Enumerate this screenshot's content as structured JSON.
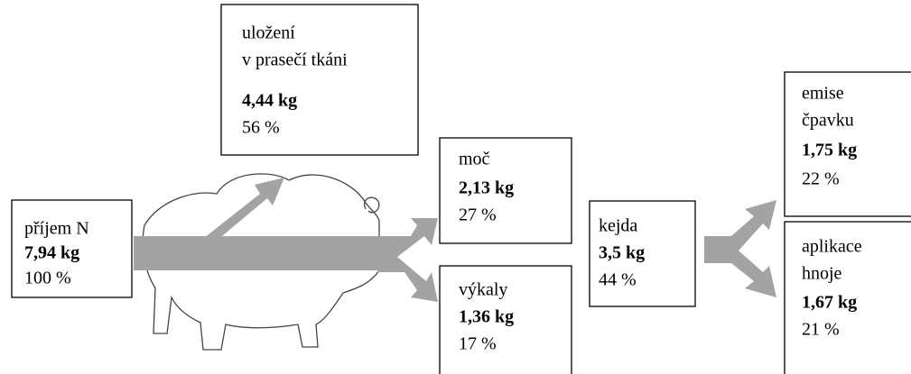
{
  "nodes": [
    {
      "lines": [
        "příjem N"
      ],
      "amount": "7,94 kg",
      "share": "100 %"
    },
    {
      "lines": [
        "uložení",
        "v prasečí tkáni"
      ],
      "amount": "4,44 kg",
      "share": "56 %"
    },
    {
      "lines": [
        "moč"
      ],
      "amount": "2,13 kg",
      "share": "27 %"
    },
    {
      "lines": [
        "výkaly"
      ],
      "amount": "1,36 kg",
      "share": "17 %"
    },
    {
      "lines": [
        "kejda"
      ],
      "amount": "3,5 kg",
      "share": "44 %"
    },
    {
      "lines": [
        "emise",
        "čpavku"
      ],
      "amount": "1,75 kg",
      "share": "22 %"
    },
    {
      "lines": [
        "aplikace",
        "hnoje"
      ],
      "amount": "1,67 kg",
      "share": "21 %"
    }
  ]
}
